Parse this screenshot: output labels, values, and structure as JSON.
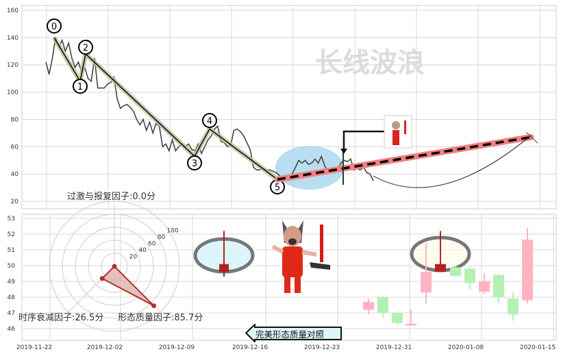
{
  "watermark": "长线波浪",
  "factors": {
    "overshoot": "过激与报复因子:0.0分",
    "decay": "时序衰减因子:26.5分",
    "quality": "形态质量因子:85.7分"
  },
  "compare_button": "完美形态质量对照",
  "chart_data": [
    {
      "type": "line",
      "ylim": [
        15,
        165
      ],
      "yticks": [
        "20",
        "40",
        "60",
        "80",
        "100",
        "120",
        "140",
        "160"
      ],
      "grid": true,
      "price": [
        122,
        113,
        125,
        140,
        133,
        138,
        130,
        136,
        125,
        118,
        122,
        115,
        118,
        110,
        108,
        125,
        103,
        103,
        103,
        106,
        107,
        111,
        95,
        88,
        90,
        91,
        89,
        86,
        80,
        76,
        80,
        72,
        78,
        70,
        77,
        75,
        60,
        62,
        57,
        65,
        57,
        60,
        62,
        60,
        62,
        58,
        57,
        62,
        55,
        60,
        65,
        68,
        73,
        75,
        64,
        63,
        60,
        61,
        72,
        73,
        71,
        68,
        63,
        58,
        45,
        43,
        43,
        44,
        43,
        43,
        42,
        41,
        39,
        36,
        37,
        38,
        40,
        45,
        50,
        48,
        50,
        47,
        48,
        51,
        48,
        53,
        46,
        42,
        43,
        41,
        43,
        48,
        50,
        49,
        51,
        43,
        44,
        43,
        45,
        41,
        40,
        35
      ],
      "wave_points": [
        {
          "label": "0",
          "value": 140
        },
        {
          "label": "1",
          "value": 108
        },
        {
          "label": "2",
          "value": 128
        },
        {
          "label": "3",
          "value": 53
        },
        {
          "label": "4",
          "value": 73
        },
        {
          "label": "5",
          "value": 36
        }
      ],
      "target_line": {
        "from": 36,
        "to": 67
      },
      "colors": {
        "price": "#444444",
        "wave": "#111111",
        "wave_glow": "#b9c29a",
        "target": "#f08080",
        "ellipse": "#a8d4ee"
      }
    },
    {
      "type": "candlestick",
      "ylim": [
        45.5,
        53.3
      ],
      "yticks": [
        "46",
        "47",
        "48",
        "49",
        "50",
        "51",
        "52",
        "53"
      ],
      "xticks": [
        "2019-11-22",
        "2019-12-02",
        "2019-12-09",
        "2019-12-16",
        "2019-12-23",
        "2019-12-31",
        "2020-01-08",
        "2020-01-15"
      ],
      "grid": true,
      "candles": [
        {
          "o": 47.2,
          "h": 47.9,
          "l": 46.9,
          "c": 47.7
        },
        {
          "o": 48.0,
          "h": 48.05,
          "l": 46.7,
          "c": 47.0
        },
        {
          "o": 47.0,
          "h": 47.05,
          "l": 46.25,
          "c": 46.35
        },
        {
          "o": 46.2,
          "h": 47.2,
          "l": 46.2,
          "c": 46.3
        },
        {
          "o": 48.3,
          "h": 51.4,
          "l": 47.6,
          "c": 49.6
        },
        {
          "o": 49.6,
          "h": 52.2,
          "l": 49.6,
          "c": 50.1,
          "highlight": true
        },
        {
          "o": 49.9,
          "h": 50.0,
          "l": 49.3,
          "c": 49.35
        },
        {
          "o": 49.8,
          "h": 49.9,
          "l": 48.5,
          "c": 48.9
        },
        {
          "o": 48.35,
          "h": 49.5,
          "l": 48.2,
          "c": 49.0
        },
        {
          "o": 49.4,
          "h": 49.5,
          "l": 47.6,
          "c": 48.0
        },
        {
          "o": 47.9,
          "h": 48.3,
          "l": 46.5,
          "c": 46.9
        },
        {
          "o": 47.8,
          "h": 52.4,
          "l": 47.6,
          "c": 51.65
        }
      ],
      "colors": {
        "up": "#ffb3c0",
        "down": "#b4f0b4",
        "highlight": "#b22222"
      }
    },
    {
      "type": "radar",
      "ring_labels": [
        "20",
        "40",
        "60",
        "80",
        "100"
      ],
      "values": [
        0.0,
        26.5,
        85.7
      ],
      "rmax": 100,
      "colors": {
        "fill": "#d9a8a0",
        "stroke": "#b03030"
      }
    }
  ]
}
